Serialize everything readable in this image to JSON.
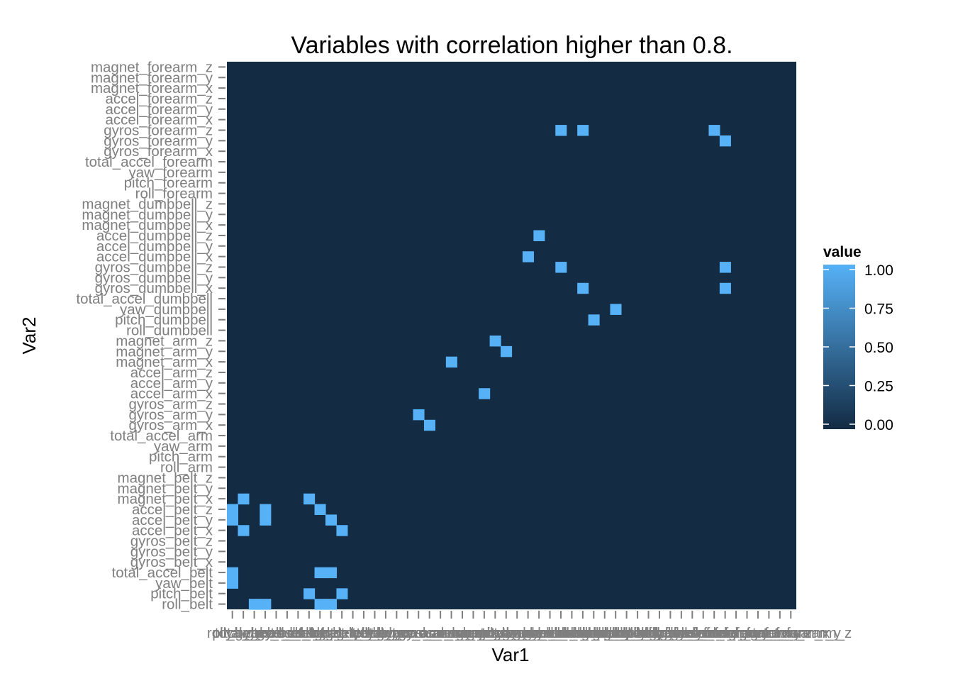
{
  "chart_data": {
    "type": "heatmap",
    "title": "Variables with correlation higher than 0.8.",
    "xlabel": "Var1",
    "ylabel": "Var2",
    "variables": [
      "roll_belt",
      "pitch_belt",
      "yaw_belt",
      "total_accel_belt",
      "gyros_belt_x",
      "gyros_belt_y",
      "gyros_belt_z",
      "accel_belt_x",
      "accel_belt_y",
      "accel_belt_z",
      "magnet_belt_x",
      "magnet_belt_y",
      "magnet_belt_z",
      "roll_arm",
      "pitch_arm",
      "yaw_arm",
      "total_accel_arm",
      "gyros_arm_x",
      "gyros_arm_y",
      "gyros_arm_z",
      "accel_arm_x",
      "accel_arm_y",
      "accel_arm_z",
      "magnet_arm_x",
      "magnet_arm_y",
      "magnet_arm_z",
      "roll_dumbbell",
      "pitch_dumbbell",
      "yaw_dumbbell",
      "total_accel_dumbbell",
      "gyros_dumbbell_x",
      "gyros_dumbbell_y",
      "gyros_dumbbell_z",
      "accel_dumbbell_x",
      "accel_dumbbell_y",
      "accel_dumbbell_z",
      "magnet_dumbbell_x",
      "magnet_dumbbell_y",
      "magnet_dumbbell_z",
      "roll_forearm",
      "pitch_forearm",
      "yaw_forearm",
      "total_accel_forearm",
      "gyros_forearm_x",
      "gyros_forearm_y",
      "gyros_forearm_z",
      "accel_forearm_x",
      "accel_forearm_y",
      "accel_forearm_z",
      "magnet_forearm_x",
      "magnet_forearm_y",
      "magnet_forearm_z"
    ],
    "high_cells": [
      {
        "x": "pitch_belt",
        "y": "accel_belt_x",
        "value": 1
      },
      {
        "x": "pitch_belt",
        "y": "magnet_belt_x",
        "value": 1
      },
      {
        "x": "accel_belt_x",
        "y": "pitch_belt",
        "value": 1
      },
      {
        "x": "accel_belt_x",
        "y": "magnet_belt_x",
        "value": 1
      },
      {
        "x": "magnet_belt_x",
        "y": "pitch_belt",
        "value": 1
      },
      {
        "x": "magnet_belt_x",
        "y": "accel_belt_x",
        "value": 1
      },
      {
        "x": "roll_belt",
        "y": "yaw_belt",
        "value": 1
      },
      {
        "x": "roll_belt",
        "y": "total_accel_belt",
        "value": 1
      },
      {
        "x": "roll_belt",
        "y": "accel_belt_y",
        "value": 1
      },
      {
        "x": "roll_belt",
        "y": "accel_belt_z",
        "value": 1
      },
      {
        "x": "yaw_belt",
        "y": "roll_belt",
        "value": 1
      },
      {
        "x": "total_accel_belt",
        "y": "roll_belt",
        "value": 1
      },
      {
        "x": "total_accel_belt",
        "y": "accel_belt_y",
        "value": 1
      },
      {
        "x": "total_accel_belt",
        "y": "accel_belt_z",
        "value": 1
      },
      {
        "x": "accel_belt_y",
        "y": "roll_belt",
        "value": 1
      },
      {
        "x": "accel_belt_y",
        "y": "total_accel_belt",
        "value": 1
      },
      {
        "x": "accel_belt_y",
        "y": "accel_belt_z",
        "value": 1
      },
      {
        "x": "accel_belt_z",
        "y": "roll_belt",
        "value": 1
      },
      {
        "x": "accel_belt_z",
        "y": "total_accel_belt",
        "value": 1
      },
      {
        "x": "accel_belt_z",
        "y": "accel_belt_y",
        "value": 1
      },
      {
        "x": "gyros_arm_x",
        "y": "gyros_arm_y",
        "value": 1
      },
      {
        "x": "gyros_arm_y",
        "y": "gyros_arm_x",
        "value": 1
      },
      {
        "x": "accel_arm_x",
        "y": "magnet_arm_x",
        "value": 1
      },
      {
        "x": "magnet_arm_x",
        "y": "accel_arm_x",
        "value": 1
      },
      {
        "x": "magnet_arm_y",
        "y": "magnet_arm_z",
        "value": 1
      },
      {
        "x": "magnet_arm_z",
        "y": "magnet_arm_y",
        "value": 1
      },
      {
        "x": "pitch_dumbbell",
        "y": "accel_dumbbell_x",
        "value": 1
      },
      {
        "x": "accel_dumbbell_x",
        "y": "pitch_dumbbell",
        "value": 1
      },
      {
        "x": "yaw_dumbbell",
        "y": "accel_dumbbell_z",
        "value": 1
      },
      {
        "x": "accel_dumbbell_z",
        "y": "yaw_dumbbell",
        "value": 1
      },
      {
        "x": "gyros_dumbbell_x",
        "y": "gyros_dumbbell_z",
        "value": 1
      },
      {
        "x": "gyros_dumbbell_x",
        "y": "gyros_forearm_z",
        "value": 1
      },
      {
        "x": "gyros_dumbbell_z",
        "y": "gyros_dumbbell_x",
        "value": 1
      },
      {
        "x": "gyros_dumbbell_z",
        "y": "gyros_forearm_z",
        "value": 1
      },
      {
        "x": "gyros_forearm_y",
        "y": "gyros_forearm_z",
        "value": 1
      },
      {
        "x": "gyros_forearm_z",
        "y": "gyros_dumbbell_x",
        "value": 1
      },
      {
        "x": "gyros_forearm_z",
        "y": "gyros_dumbbell_z",
        "value": 1
      },
      {
        "x": "gyros_forearm_z",
        "y": "gyros_forearm_y",
        "value": 1
      }
    ],
    "default_value": 0,
    "legend": {
      "title": "value",
      "placement": "right",
      "breaks": [
        "0.00",
        "0.25",
        "0.50",
        "0.75",
        "1.00"
      ],
      "range": [
        0,
        1
      ],
      "low_color": "#132B43",
      "high_color": "#56B1F7"
    },
    "grid": false
  }
}
